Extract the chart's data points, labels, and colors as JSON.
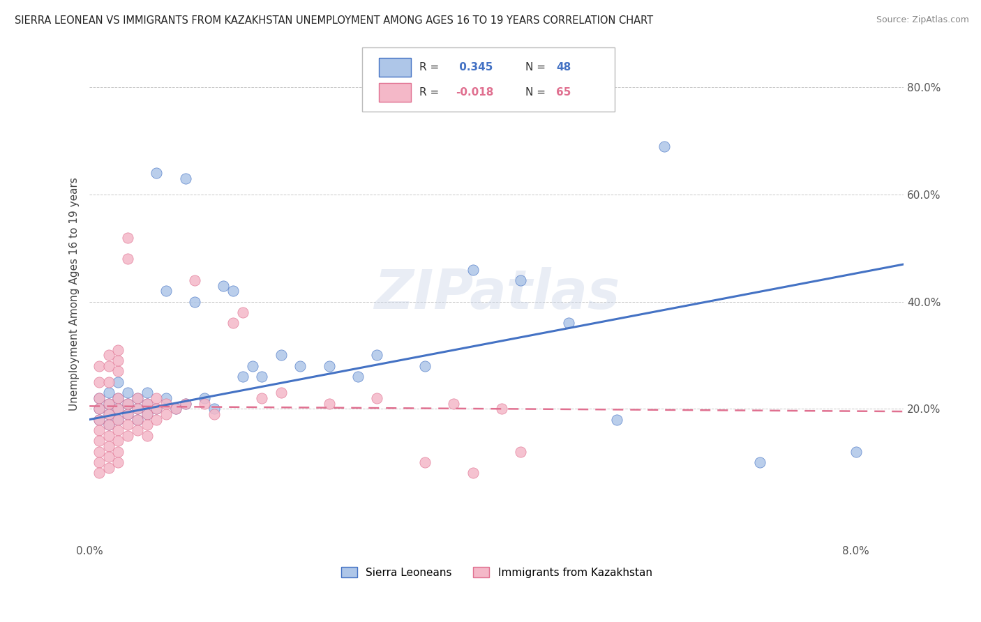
{
  "title": "SIERRA LEONEAN VS IMMIGRANTS FROM KAZAKHSTAN UNEMPLOYMENT AMONG AGES 16 TO 19 YEARS CORRELATION CHART",
  "source": "Source: ZipAtlas.com",
  "ylabel": "Unemployment Among Ages 16 to 19 years",
  "r_blue": 0.345,
  "n_blue": 48,
  "r_pink": -0.018,
  "n_pink": 65,
  "xlim": [
    0.0,
    0.085
  ],
  "ylim": [
    -0.05,
    0.88
  ],
  "blue_scatter_x": [
    0.001,
    0.001,
    0.001,
    0.002,
    0.002,
    0.002,
    0.002,
    0.003,
    0.003,
    0.003,
    0.003,
    0.004,
    0.004,
    0.004,
    0.005,
    0.005,
    0.005,
    0.006,
    0.006,
    0.006,
    0.007,
    0.007,
    0.008,
    0.008,
    0.009,
    0.01,
    0.01,
    0.011,
    0.012,
    0.013,
    0.014,
    0.015,
    0.016,
    0.017,
    0.018,
    0.02,
    0.022,
    0.025,
    0.028,
    0.03,
    0.035,
    0.04,
    0.045,
    0.05,
    0.055,
    0.06,
    0.07,
    0.08
  ],
  "blue_scatter_y": [
    0.2,
    0.22,
    0.18,
    0.19,
    0.21,
    0.23,
    0.17,
    0.2,
    0.22,
    0.18,
    0.25,
    0.19,
    0.21,
    0.23,
    0.2,
    0.22,
    0.18,
    0.21,
    0.19,
    0.23,
    0.64,
    0.2,
    0.22,
    0.42,
    0.2,
    0.63,
    0.21,
    0.4,
    0.22,
    0.2,
    0.43,
    0.42,
    0.26,
    0.28,
    0.26,
    0.3,
    0.28,
    0.28,
    0.26,
    0.3,
    0.28,
    0.46,
    0.44,
    0.36,
    0.18,
    0.69,
    0.1,
    0.12
  ],
  "pink_scatter_x": [
    0.001,
    0.001,
    0.001,
    0.001,
    0.001,
    0.001,
    0.001,
    0.001,
    0.001,
    0.001,
    0.002,
    0.002,
    0.002,
    0.002,
    0.002,
    0.002,
    0.002,
    0.002,
    0.002,
    0.002,
    0.003,
    0.003,
    0.003,
    0.003,
    0.003,
    0.003,
    0.003,
    0.003,
    0.003,
    0.003,
    0.004,
    0.004,
    0.004,
    0.004,
    0.004,
    0.004,
    0.005,
    0.005,
    0.005,
    0.005,
    0.006,
    0.006,
    0.006,
    0.006,
    0.007,
    0.007,
    0.007,
    0.008,
    0.008,
    0.009,
    0.01,
    0.011,
    0.012,
    0.013,
    0.015,
    0.016,
    0.018,
    0.02,
    0.025,
    0.03,
    0.035,
    0.038,
    0.04,
    0.043,
    0.045
  ],
  "pink_scatter_y": [
    0.22,
    0.2,
    0.18,
    0.16,
    0.14,
    0.12,
    0.1,
    0.08,
    0.25,
    0.28,
    0.21,
    0.19,
    0.17,
    0.15,
    0.13,
    0.11,
    0.09,
    0.25,
    0.28,
    0.3,
    0.22,
    0.2,
    0.18,
    0.16,
    0.14,
    0.12,
    0.1,
    0.27,
    0.29,
    0.31,
    0.21,
    0.19,
    0.17,
    0.15,
    0.52,
    0.48,
    0.22,
    0.2,
    0.18,
    0.16,
    0.21,
    0.19,
    0.17,
    0.15,
    0.22,
    0.2,
    0.18,
    0.21,
    0.19,
    0.2,
    0.21,
    0.44,
    0.21,
    0.19,
    0.36,
    0.38,
    0.22,
    0.23,
    0.21,
    0.22,
    0.1,
    0.21,
    0.08,
    0.2,
    0.12
  ],
  "blue_color": "#aec6e8",
  "pink_color": "#f4b8c8",
  "blue_line_color": "#4472c4",
  "pink_line_color": "#e07090",
  "legend_blue_series": "Sierra Leoneans",
  "legend_pink_series": "Immigrants from Kazakhstan",
  "watermark": "ZIPatlas",
  "background_color": "#ffffff",
  "grid_color": "#c8c8c8"
}
